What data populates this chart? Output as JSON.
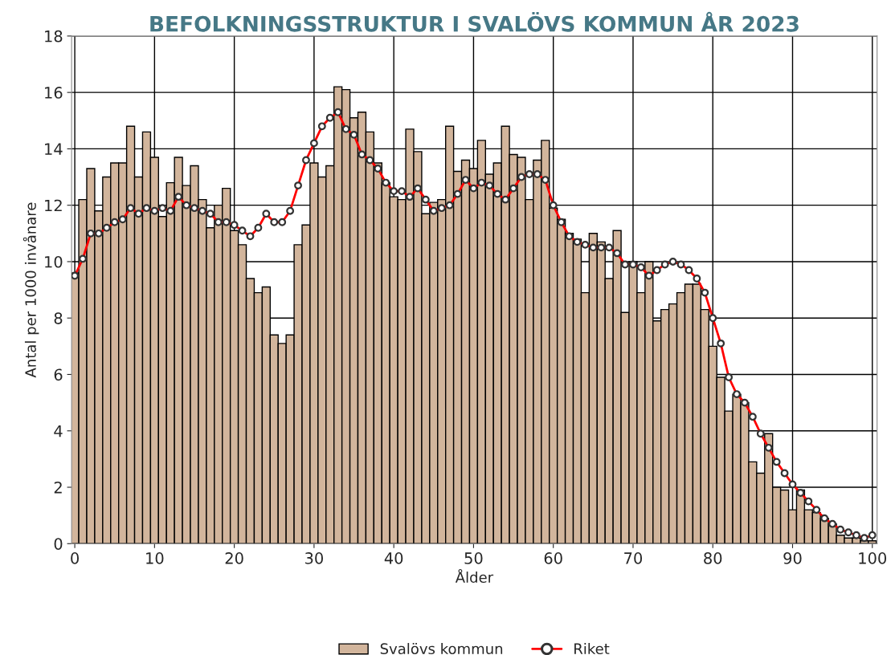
{
  "chart_data": {
    "type": "bar",
    "title": "BEFOLKNINGSSTRUKTUR I SVALÖVS KOMMUN ÅR 2023",
    "xlabel": "Ålder",
    "ylabel": "Antal per 1000 invånare",
    "x": [
      0,
      1,
      2,
      3,
      4,
      5,
      6,
      7,
      8,
      9,
      10,
      11,
      12,
      13,
      14,
      15,
      16,
      17,
      18,
      19,
      20,
      21,
      22,
      23,
      24,
      25,
      26,
      27,
      28,
      29,
      30,
      31,
      32,
      33,
      34,
      35,
      36,
      37,
      38,
      39,
      40,
      41,
      42,
      43,
      44,
      45,
      46,
      47,
      48,
      49,
      50,
      51,
      52,
      53,
      54,
      55,
      56,
      57,
      58,
      59,
      60,
      61,
      62,
      63,
      64,
      65,
      66,
      67,
      68,
      69,
      70,
      71,
      72,
      73,
      74,
      75,
      76,
      77,
      78,
      79,
      80,
      81,
      82,
      83,
      84,
      85,
      86,
      87,
      88,
      89,
      90,
      91,
      92,
      93,
      94,
      95,
      96,
      97,
      98,
      99,
      100
    ],
    "series": [
      {
        "name": "Svalövs kommun",
        "color": "#d2b59c",
        "values": [
          9.6,
          12.2,
          13.3,
          11.8,
          13.0,
          13.5,
          13.5,
          14.8,
          13.0,
          14.6,
          13.7,
          11.6,
          12.8,
          13.7,
          12.7,
          13.4,
          12.2,
          11.2,
          12.0,
          12.6,
          11.1,
          10.6,
          9.4,
          8.9,
          9.1,
          7.4,
          7.1,
          7.4,
          10.6,
          11.3,
          13.5,
          13.0,
          13.4,
          16.2,
          16.1,
          15.1,
          15.3,
          14.6,
          13.5,
          12.8,
          12.3,
          12.2,
          14.7,
          13.9,
          11.7,
          12.1,
          12.2,
          14.8,
          13.2,
          13.6,
          13.3,
          14.3,
          13.1,
          13.5,
          14.8,
          13.8,
          13.7,
          12.2,
          13.6,
          14.3,
          11.9,
          11.5,
          11.0,
          10.8,
          8.9,
          11.0,
          10.7,
          9.4,
          11.1,
          8.2,
          10.0,
          8.9,
          10.0,
          7.9,
          8.3,
          8.5,
          8.9,
          9.2,
          9.2,
          8.3,
          7.0,
          5.9,
          4.7,
          5.3,
          5.0,
          2.9,
          2.5,
          3.9,
          2.0,
          1.9,
          1.2,
          1.9,
          1.2,
          1.1,
          0.9,
          0.7,
          0.3,
          0.2,
          0.2,
          0.1,
          0.1
        ]
      },
      {
        "name": "Riket",
        "type": "line",
        "color": "#ff0000",
        "marker": "circle",
        "values": [
          9.5,
          10.1,
          11.0,
          11.0,
          11.2,
          11.4,
          11.5,
          11.9,
          11.7,
          11.9,
          11.8,
          11.9,
          11.8,
          12.3,
          12.0,
          11.9,
          11.8,
          11.7,
          11.4,
          11.4,
          11.3,
          11.1,
          10.9,
          11.2,
          11.7,
          11.4,
          11.4,
          11.8,
          12.7,
          13.6,
          14.2,
          14.8,
          15.1,
          15.3,
          14.7,
          14.5,
          13.8,
          13.6,
          13.3,
          12.8,
          12.5,
          12.5,
          12.3,
          12.6,
          12.2,
          11.8,
          11.9,
          12.0,
          12.4,
          12.9,
          12.6,
          12.8,
          12.7,
          12.4,
          12.2,
          12.6,
          13.0,
          13.1,
          13.1,
          12.9,
          12.0,
          11.4,
          10.9,
          10.7,
          10.6,
          10.5,
          10.5,
          10.5,
          10.3,
          9.9,
          9.9,
          9.8,
          9.5,
          9.7,
          9.9,
          10.0,
          9.9,
          9.7,
          9.4,
          8.9,
          8.0,
          7.1,
          5.9,
          5.3,
          5.0,
          4.5,
          3.9,
          3.4,
          2.9,
          2.5,
          2.1,
          1.8,
          1.5,
          1.2,
          0.9,
          0.7,
          0.5,
          0.4,
          0.3,
          0.2,
          0.3
        ]
      }
    ],
    "xlim": [
      -0.4,
      100.6
    ],
    "xticks": [
      0,
      10,
      20,
      30,
      40,
      50,
      60,
      70,
      80,
      90,
      100
    ],
    "ylim": [
      0,
      18
    ],
    "yticks": [
      0,
      2,
      4,
      6,
      8,
      10,
      12,
      14,
      16,
      18
    ],
    "grid": true,
    "legend": "bottom"
  }
}
